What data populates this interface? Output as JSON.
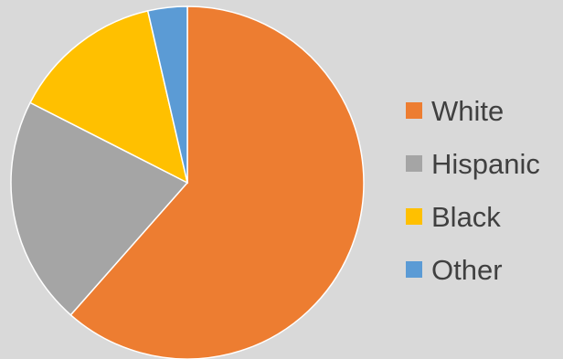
{
  "chart_data": {
    "type": "pie",
    "title": "",
    "categories": [
      "White",
      "Hispanic",
      "Black",
      "Other"
    ],
    "values": [
      61.5,
      21.0,
      13.9,
      3.6
    ],
    "colors": [
      "#ed7d31",
      "#a5a5a5",
      "#ffc000",
      "#5b9bd5"
    ],
    "legend_position": "right",
    "start_angle": "top",
    "direction": "clockwise"
  }
}
